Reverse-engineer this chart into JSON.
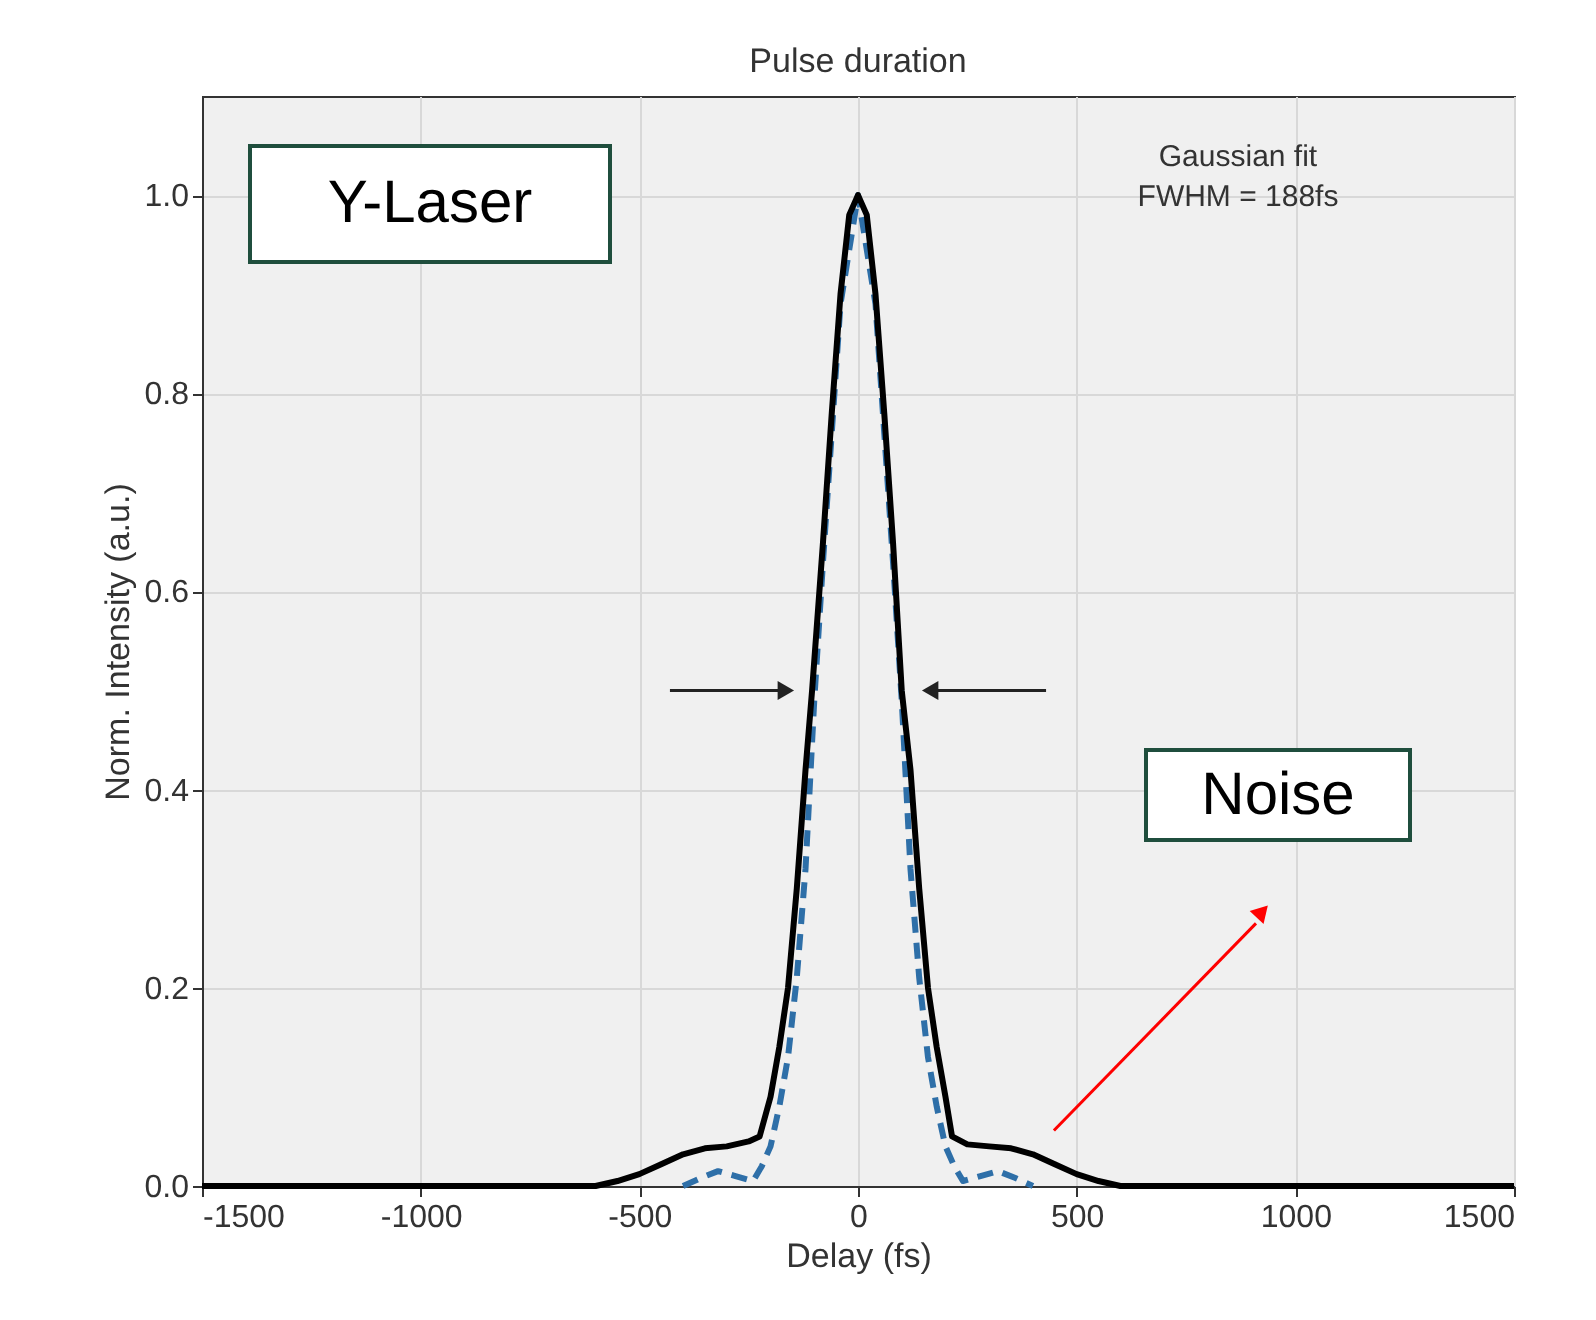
{
  "chart_data": {
    "type": "line",
    "title": "Pulse duration",
    "xlabel": "Delay (fs)",
    "ylabel": "Norm. Intensity (a.u.)",
    "xlim": [
      -1500,
      1500
    ],
    "xticks": [
      -1500,
      -1000,
      -500,
      0,
      500,
      1000,
      1500
    ],
    "ylim": [
      0,
      1.1
    ],
    "yticks": [
      {
        "value": 0,
        "label": "0.0"
      },
      {
        "value": 0.2,
        "label": "0.2"
      },
      {
        "value": 0.4,
        "label": "0.4"
      },
      {
        "value": 0.6,
        "label": "0.6"
      },
      {
        "value": 0.8,
        "label": "0.8"
      },
      {
        "value": 1.0,
        "label": "1.0"
      }
    ],
    "grid": true,
    "annotations": [
      "Y-Laser",
      "Gaussian fit\nFWHM = 188fs",
      "Noise"
    ],
    "series": [
      {
        "color": "#000000",
        "line_style": "solid",
        "x": [
          -1500,
          -600,
          -550,
          -500,
          -450,
          -400,
          -350,
          -300,
          -250,
          -225,
          -200,
          -180,
          -160,
          -140,
          -120,
          -105,
          -80,
          -60,
          -40,
          -20,
          0,
          20,
          40,
          60,
          80,
          100,
          120,
          140,
          160,
          180,
          200,
          215,
          250,
          300,
          350,
          400,
          450,
          500,
          550,
          600,
          1500
        ],
        "values": [
          0,
          0,
          0.005,
          0.012,
          0.022,
          0.032,
          0.038,
          0.04,
          0.045,
          0.05,
          0.09,
          0.14,
          0.2,
          0.3,
          0.42,
          0.5,
          0.65,
          0.78,
          0.9,
          0.98,
          1.0,
          0.98,
          0.9,
          0.78,
          0.65,
          0.5,
          0.42,
          0.3,
          0.2,
          0.14,
          0.09,
          0.05,
          0.042,
          0.04,
          0.038,
          0.032,
          0.022,
          0.012,
          0.005,
          0,
          0
        ]
      },
      {
        "color": "#2e6fa8",
        "line_style": "dashed",
        "x": [
          -400,
          -360,
          -320,
          -280,
          -240,
          -220,
          -200,
          -180,
          -160,
          -140,
          -120,
          -100,
          -80,
          -40,
          0,
          40,
          80,
          100,
          120,
          140,
          160,
          180,
          200,
          220,
          240,
          280,
          320,
          360,
          400
        ],
        "values": [
          0,
          0.008,
          0.015,
          0.01,
          0.005,
          0.02,
          0.04,
          0.08,
          0.13,
          0.21,
          0.32,
          0.49,
          0.63,
          0.89,
          1.0,
          0.89,
          0.63,
          0.49,
          0.32,
          0.21,
          0.13,
          0.08,
          0.04,
          0.02,
          0.005,
          0.01,
          0.015,
          0.008,
          0
        ]
      }
    ]
  }
}
